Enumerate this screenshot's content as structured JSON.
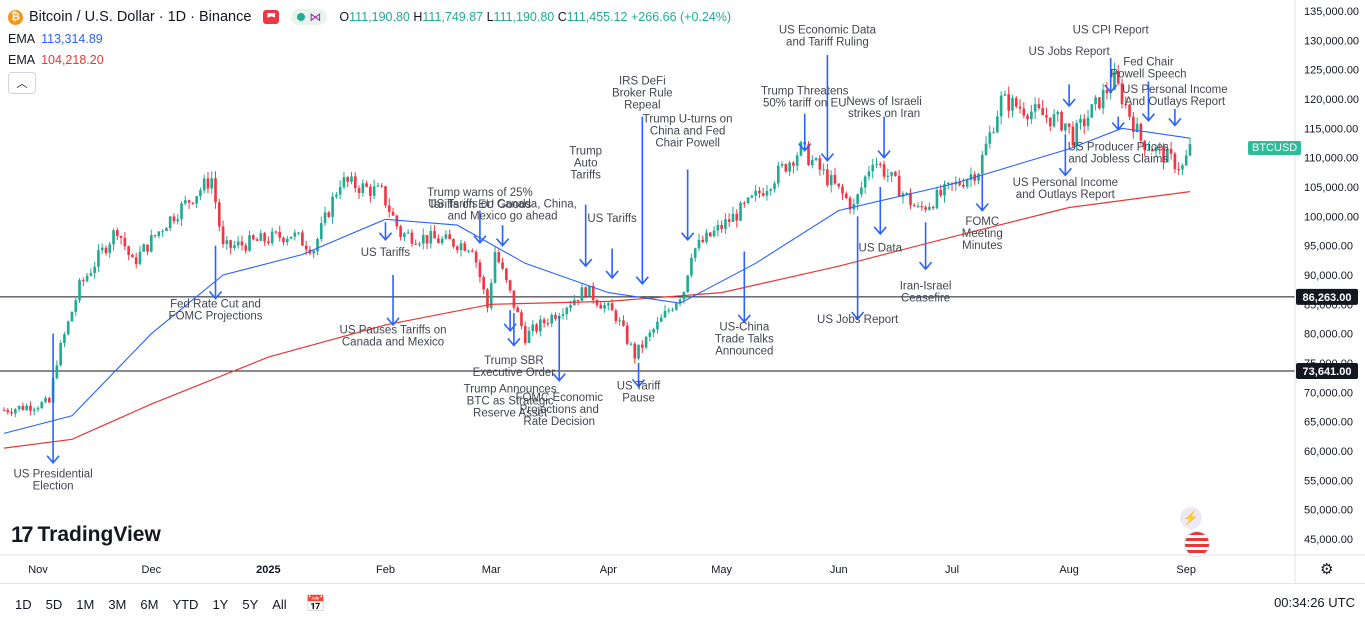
{
  "header": {
    "symbol_icon": "bitcoin-icon",
    "title": "Bitcoin / U.S. Dollar · 1D · Binance",
    "ohlc": {
      "o_label": "O",
      "o": "111,190.80",
      "h_label": "H",
      "h": "111,749.87",
      "l_label": "L",
      "l": "111,190.80",
      "c_label": "C",
      "c": "111,455.12",
      "change": "+266.66 (+0.24%)"
    },
    "ema_fast": {
      "label": "EMA",
      "value": "113,314.89",
      "color": "#2962ff"
    },
    "ema_slow": {
      "label": "EMA",
      "value": "104,218.20",
      "color": "#e53935"
    }
  },
  "branding": {
    "logo_text": "TradingView"
  },
  "ticker_tag": "BTCUSD",
  "toolbar": {
    "timeframes": [
      "1D",
      "5D",
      "1M",
      "3M",
      "6M",
      "YTD",
      "1Y",
      "5Y",
      "All"
    ],
    "clock": "00:34:26 UTC"
  },
  "colors": {
    "up": "#22ab94",
    "down": "#f23645",
    "ema_fast": "#2962ff",
    "ema_slow": "#e53935",
    "annotation": "#2962ff"
  },
  "chart_data": {
    "type": "candlestick",
    "symbol": "BTCUSD",
    "interval": "1D",
    "ylim": [
      44000,
      137000
    ],
    "y_ticks": [
      "135,000.00",
      "130,000.00",
      "125,000.00",
      "120,000.00",
      "115,000.00",
      "110,000.00",
      "105,000.00",
      "100,000.00",
      "95,000.00",
      "90,000.00",
      "85,000.00",
      "80,000.00",
      "75,000.00",
      "70,000.00",
      "65,000.00",
      "60,000.00",
      "55,000.00",
      "50,000.00",
      "45,000.00"
    ],
    "x_ticks": [
      "Nov",
      "Dec",
      "2025",
      "Feb",
      "Mar",
      "Apr",
      "May",
      "Jun",
      "Jul",
      "Aug",
      "Sep"
    ],
    "horizontal_levels": [
      {
        "value": 86263,
        "label": "86,263.00"
      },
      {
        "value": 73641,
        "label": "73,641.00"
      }
    ],
    "price_path": [
      {
        "date": "2024-10-23",
        "close": 67000
      },
      {
        "date": "2024-11-04",
        "close": 68200
      },
      {
        "date": "2024-11-06",
        "close": 75500
      },
      {
        "date": "2024-11-12",
        "close": 88000
      },
      {
        "date": "2024-11-22",
        "close": 98000
      },
      {
        "date": "2024-11-26",
        "close": 92000
      },
      {
        "date": "2024-12-05",
        "close": 99000
      },
      {
        "date": "2024-12-17",
        "close": 106500
      },
      {
        "date": "2024-12-20",
        "close": 94500
      },
      {
        "date": "2025-01-07",
        "close": 97000
      },
      {
        "date": "2025-01-13",
        "close": 94500
      },
      {
        "date": "2025-01-20",
        "close": 106000
      },
      {
        "date": "2025-01-31",
        "close": 104000
      },
      {
        "date": "2025-02-05",
        "close": 97000
      },
      {
        "date": "2025-02-24",
        "close": 95000
      },
      {
        "date": "2025-02-28",
        "close": 84500
      },
      {
        "date": "2025-03-02",
        "close": 94000
      },
      {
        "date": "2025-03-10",
        "close": 79500
      },
      {
        "date": "2025-03-26",
        "close": 87500
      },
      {
        "date": "2025-04-03",
        "close": 83000
      },
      {
        "date": "2025-04-08",
        "close": 76300
      },
      {
        "date": "2025-04-21",
        "close": 87500
      },
      {
        "date": "2025-04-23",
        "close": 94000
      },
      {
        "date": "2025-05-08",
        "close": 102000
      },
      {
        "date": "2025-05-22",
        "close": 111500
      },
      {
        "date": "2025-06-05",
        "close": 101500
      },
      {
        "date": "2025-06-10",
        "close": 110000
      },
      {
        "date": "2025-06-22",
        "close": 101000
      },
      {
        "date": "2025-07-08",
        "close": 108000
      },
      {
        "date": "2025-07-14",
        "close": 119800
      },
      {
        "date": "2025-07-31",
        "close": 115800
      },
      {
        "date": "2025-08-02",
        "close": 113500
      },
      {
        "date": "2025-08-13",
        "close": 123300
      },
      {
        "date": "2025-08-20",
        "close": 113000
      },
      {
        "date": "2025-08-31",
        "close": 108300
      },
      {
        "date": "2025-09-02",
        "close": 111455
      }
    ],
    "ema_fast_path": [
      {
        "date": "2024-10-23",
        "value": 63000
      },
      {
        "date": "2024-11-10",
        "value": 66000
      },
      {
        "date": "2024-12-01",
        "value": 80000
      },
      {
        "date": "2024-12-20",
        "value": 90000
      },
      {
        "date": "2025-01-10",
        "value": 93500
      },
      {
        "date": "2025-02-01",
        "value": 99500
      },
      {
        "date": "2025-02-20",
        "value": 98500
      },
      {
        "date": "2025-03-10",
        "value": 92000
      },
      {
        "date": "2025-04-01",
        "value": 87000
      },
      {
        "date": "2025-04-20",
        "value": 85200
      },
      {
        "date": "2025-05-10",
        "value": 92000
      },
      {
        "date": "2025-06-01",
        "value": 101000
      },
      {
        "date": "2025-07-01",
        "value": 105500
      },
      {
        "date": "2025-08-01",
        "value": 111500
      },
      {
        "date": "2025-08-15",
        "value": 115000
      },
      {
        "date": "2025-09-02",
        "value": 113315
      }
    ],
    "ema_slow_path": [
      {
        "date": "2024-10-23",
        "value": 60500
      },
      {
        "date": "2024-11-10",
        "value": 62000
      },
      {
        "date": "2024-12-01",
        "value": 68000
      },
      {
        "date": "2025-01-01",
        "value": 76000
      },
      {
        "date": "2025-02-01",
        "value": 81500
      },
      {
        "date": "2025-03-01",
        "value": 85000
      },
      {
        "date": "2025-04-01",
        "value": 85500
      },
      {
        "date": "2025-05-01",
        "value": 87000
      },
      {
        "date": "2025-06-01",
        "value": 91500
      },
      {
        "date": "2025-07-01",
        "value": 96500
      },
      {
        "date": "2025-08-01",
        "value": 101500
      },
      {
        "date": "2025-09-02",
        "value": 104218
      }
    ],
    "annotations": [
      {
        "text": "US Presidential\nElection",
        "date": "2024-11-05",
        "arrow_from": 80000,
        "arrow_to": 58000,
        "label_at": 55500,
        "dir": "up"
      },
      {
        "text": "Fed Rate Cut and\nFOMC Projections",
        "date": "2024-12-18",
        "arrow_from": 95000,
        "arrow_to": 86000,
        "label_at": 84500,
        "dir": "up"
      },
      {
        "text": "US Tariffs",
        "date": "2025-02-01",
        "arrow_from": 99000,
        "arrow_to": 96000,
        "label_at": 93200,
        "dir": "up"
      },
      {
        "text": "US Pauses Tariffs on\nCanada and Mexico",
        "date": "2025-02-03",
        "arrow_from": 90000,
        "arrow_to": 81500,
        "label_at": 80000,
        "dir": "up"
      },
      {
        "text": "Trump warns of 25%\nTariffs on EU Goods",
        "date": "2025-02-26",
        "arrow_from": 101000,
        "arrow_to": 95500,
        "label_at": 103500,
        "dir": "down"
      },
      {
        "text": "US Tariffs on Canada, China,\nand Mexico go ahead",
        "date": "2025-03-04",
        "arrow_from": 98500,
        "arrow_to": 95000,
        "label_at": 101500,
        "dir": "down"
      },
      {
        "text": "Trump Announces\nBTC as Strategic\nReserve Asset",
        "date": "2025-03-06",
        "arrow_from": 84000,
        "arrow_to": 80500,
        "label_at": 70000,
        "dir": "up"
      },
      {
        "text": "Trump SBR\nExecutive Order",
        "date": "2025-03-07",
        "arrow_from": 83500,
        "arrow_to": 78000,
        "label_at": 74800,
        "dir": "up"
      },
      {
        "text": "Trump\nAuto\nTariffs",
        "date": "2025-03-26",
        "arrow_from": 102000,
        "arrow_to": 91500,
        "label_at": 110500,
        "dir": "down"
      },
      {
        "text": "US Tariffs",
        "date": "2025-04-02",
        "arrow_from": 94500,
        "arrow_to": 89500,
        "label_at": 99000,
        "dir": "down"
      },
      {
        "text": "FOMC Economic\nProjections and\nRate Decision",
        "date": "2025-03-19",
        "arrow_from": 83000,
        "arrow_to": 72000,
        "label_at": 68500,
        "dir": "up"
      },
      {
        "text": "US Tariff\nPause",
        "date": "2025-04-09",
        "arrow_from": 75000,
        "arrow_to": 71000,
        "label_at": 70500,
        "dir": "up"
      },
      {
        "text": "IRS DeFi\nBroker Rule\nRepeal",
        "date": "2025-04-10",
        "arrow_from": 117000,
        "arrow_to": 88500,
        "label_at": 122500,
        "dir": "down"
      },
      {
        "text": "Trump U-turns on\nChina and Fed\nChair Powell",
        "date": "2025-04-22",
        "arrow_from": 108000,
        "arrow_to": 96000,
        "label_at": 116000,
        "dir": "down"
      },
      {
        "text": "US-China\nTrade Talks\nAnnounced",
        "date": "2025-05-07",
        "arrow_from": 94000,
        "arrow_to": 82000,
        "label_at": 80500,
        "dir": "up"
      },
      {
        "text": "Trump Threatens\n50% tariff on EU",
        "date": "2025-05-23",
        "arrow_from": 117500,
        "arrow_to": 111200,
        "label_at": 120800,
        "dir": "down"
      },
      {
        "text": "US Economic Data\nand Tariff Ruling",
        "date": "2025-05-29",
        "arrow_from": 127500,
        "arrow_to": 109500,
        "label_at": 131200,
        "dir": "down"
      },
      {
        "text": "US Jobs Report",
        "date": "2025-06-06",
        "arrow_from": 100000,
        "arrow_to": 82500,
        "label_at": 81800,
        "dir": "up"
      },
      {
        "text": "News of Israeli\nstrikes on Iran",
        "date": "2025-06-13",
        "arrow_from": 117000,
        "arrow_to": 110000,
        "label_at": 119000,
        "dir": "down"
      },
      {
        "text": "US Data",
        "date": "2025-06-12",
        "arrow_from": 105000,
        "arrow_to": 97000,
        "label_at": 94000,
        "dir": "up"
      },
      {
        "text": "Iran-Israel\nCeasefire",
        "date": "2025-06-24",
        "arrow_from": 99000,
        "arrow_to": 91000,
        "label_at": 87500,
        "dir": "up"
      },
      {
        "text": "FOMC\nMeeting\nMinutes",
        "date": "2025-07-09",
        "arrow_from": 107000,
        "arrow_to": 101000,
        "label_at": 98500,
        "dir": "up"
      },
      {
        "text": "US Jobs Report",
        "date": "2025-08-01",
        "arrow_from": 122500,
        "arrow_to": 118800,
        "label_at": 127500,
        "dir": "down"
      },
      {
        "text": "US Personal Income\nand Outlays Report",
        "date": "2025-07-31",
        "arrow_from": 114000,
        "arrow_to": 107000,
        "label_at": 105200,
        "dir": "up"
      },
      {
        "text": "US CPI Report",
        "date": "2025-08-12",
        "arrow_from": 127000,
        "arrow_to": 121200,
        "label_at": 131200,
        "dir": "down"
      },
      {
        "text": "Fed Chair\nPowell Speech",
        "date": "2025-08-22",
        "arrow_from": 123000,
        "arrow_to": 116300,
        "label_at": 125700,
        "dir": "down"
      },
      {
        "text": "US Personal Income\nAnd Outlays Report",
        "date": "2025-08-29",
        "arrow_from": 118300,
        "arrow_to": 115500,
        "label_at": 121000,
        "dir": "down"
      },
      {
        "text": "US Producer Prices\nand Jobless Claims",
        "date": "2025-08-14",
        "arrow_from": 117000,
        "arrow_to": 114800,
        "label_at": 111200,
        "dir": "up"
      }
    ]
  }
}
